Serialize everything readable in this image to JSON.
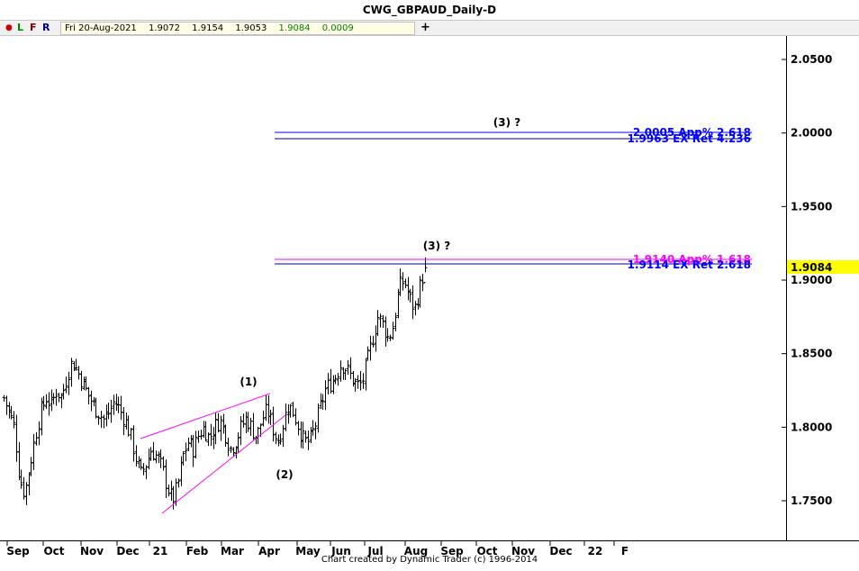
{
  "window": {
    "title": "CWG_GBPAUD_Daily-D"
  },
  "toolbar": {
    "dot": "●",
    "l": "L",
    "f": "F",
    "r": "R",
    "plus": "+"
  },
  "ohlc": {
    "date": "Fri 20-Aug-2021",
    "open": "1.9072",
    "high": "1.9154",
    "low": "1.9053",
    "close": "1.9084",
    "change": "0.0009"
  },
  "footer": {
    "credit": "Chart created by Dynamic Trader  (c) 1996-2014"
  },
  "colors": {
    "bars": "#000000",
    "magenta": "#ff00ff",
    "blue": "#0000ff",
    "navy": "#000080",
    "price_box": "#ffff00"
  },
  "chart_data": {
    "type": "bar",
    "title": "CWG_GBPAUD_Daily-D",
    "x_axis": [
      "Sep",
      "Oct",
      "Nov",
      "Dec",
      "21",
      "Feb",
      "Mar",
      "Apr",
      "May",
      "Jun",
      "Jul",
      "Aug",
      "Sep",
      "Oct",
      "Nov",
      "Dec",
      "22",
      "F"
    ],
    "y_axis": {
      "ticks": [
        "2.0500",
        "2.0000",
        "1.9500",
        "1.9000",
        "1.8500",
        "1.8000",
        "1.7500"
      ],
      "min": 1.72,
      "max": 2.063
    },
    "last_price": "1.9084",
    "grid": false,
    "wave_labels": [
      "(1)",
      "(2)",
      "(3) ?",
      "(3) ?"
    ],
    "target_levels": [
      {
        "label": "2.0005 App% 2.618",
        "value": 2.0005,
        "color": "#0000ff"
      },
      {
        "label": "1.9963 EX Ret 4.236",
        "value": 1.9963,
        "color": "#0000ff"
      },
      {
        "label": "1.9140 App% 1.618",
        "value": 1.914,
        "color": "#ff00ff"
      },
      {
        "label": "1.9114 EX Ret 2.618",
        "value": 1.9114,
        "color": "#0000ff"
      }
    ],
    "price_path_close": [
      1.82,
      1.81,
      1.8,
      1.765,
      1.755,
      1.775,
      1.795,
      1.81,
      1.82,
      1.815,
      1.825,
      1.82,
      1.835,
      1.845,
      1.838,
      1.83,
      1.822,
      1.815,
      1.81,
      1.805,
      1.81,
      1.818,
      1.812,
      1.805,
      1.795,
      1.78,
      1.768,
      1.775,
      1.785,
      1.78,
      1.773,
      1.76,
      1.75,
      1.76,
      1.78,
      1.79,
      1.785,
      1.795,
      1.8,
      1.792,
      1.8,
      1.805,
      1.797,
      1.785,
      1.79,
      1.8,
      1.806,
      1.8,
      1.793,
      1.805,
      1.812,
      1.8,
      1.79,
      1.802,
      1.815,
      1.81,
      1.8,
      1.79,
      1.79,
      1.8,
      1.812,
      1.825,
      1.83,
      1.835,
      1.843,
      1.84,
      1.834,
      1.828,
      1.83,
      1.845,
      1.86,
      1.875,
      1.87,
      1.86,
      1.87,
      1.895,
      1.9,
      1.888,
      1.88,
      1.895,
      1.9084
    ]
  }
}
